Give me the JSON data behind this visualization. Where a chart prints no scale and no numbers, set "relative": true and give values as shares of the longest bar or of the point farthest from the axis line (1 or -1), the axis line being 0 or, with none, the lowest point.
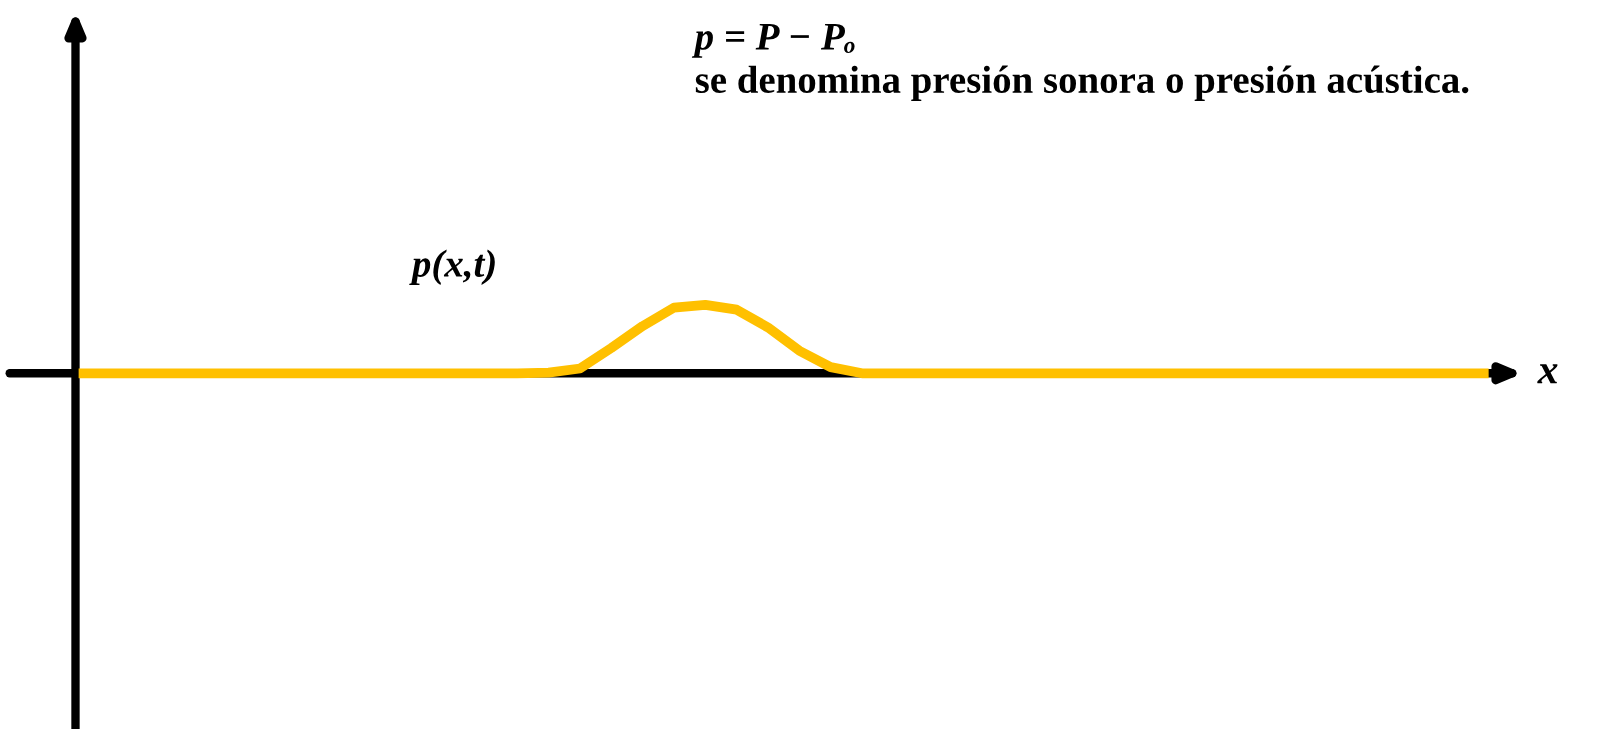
{
  "chart_data": {
    "type": "line",
    "relative": true,
    "xlabel": "x",
    "ylabel": "p(x,t)",
    "annotations": [
      "p = P − Pₒ",
      "se denomina presión sonora o presión acústica."
    ],
    "categories": [
      null,
      null,
      null,
      null,
      null,
      null,
      null,
      null,
      null,
      null,
      null,
      null,
      null,
      null,
      null,
      null,
      null,
      null,
      null,
      null,
      null,
      null,
      null,
      null,
      null,
      null,
      null,
      null,
      null,
      null,
      null,
      null,
      null,
      null,
      null,
      null,
      null,
      null,
      null,
      null,
      null,
      null,
      null,
      null,
      null,
      null
    ],
    "series": [
      {
        "color": "#ffc000",
        "values": [
          0,
          0,
          0,
          0,
          0,
          0,
          0,
          0,
          0,
          0,
          0,
          0,
          0,
          0,
          0,
          0.01,
          0.07,
          0.37,
          0.69,
          0.96,
          1,
          0.93,
          0.67,
          0.33,
          0.09,
          0,
          0,
          0,
          0,
          0,
          0,
          0,
          0,
          0,
          0,
          0,
          0,
          0,
          0,
          0,
          0,
          0,
          0,
          0,
          0,
          0
        ]
      }
    ],
    "marker": "none",
    "line_style": "solid"
  }
}
